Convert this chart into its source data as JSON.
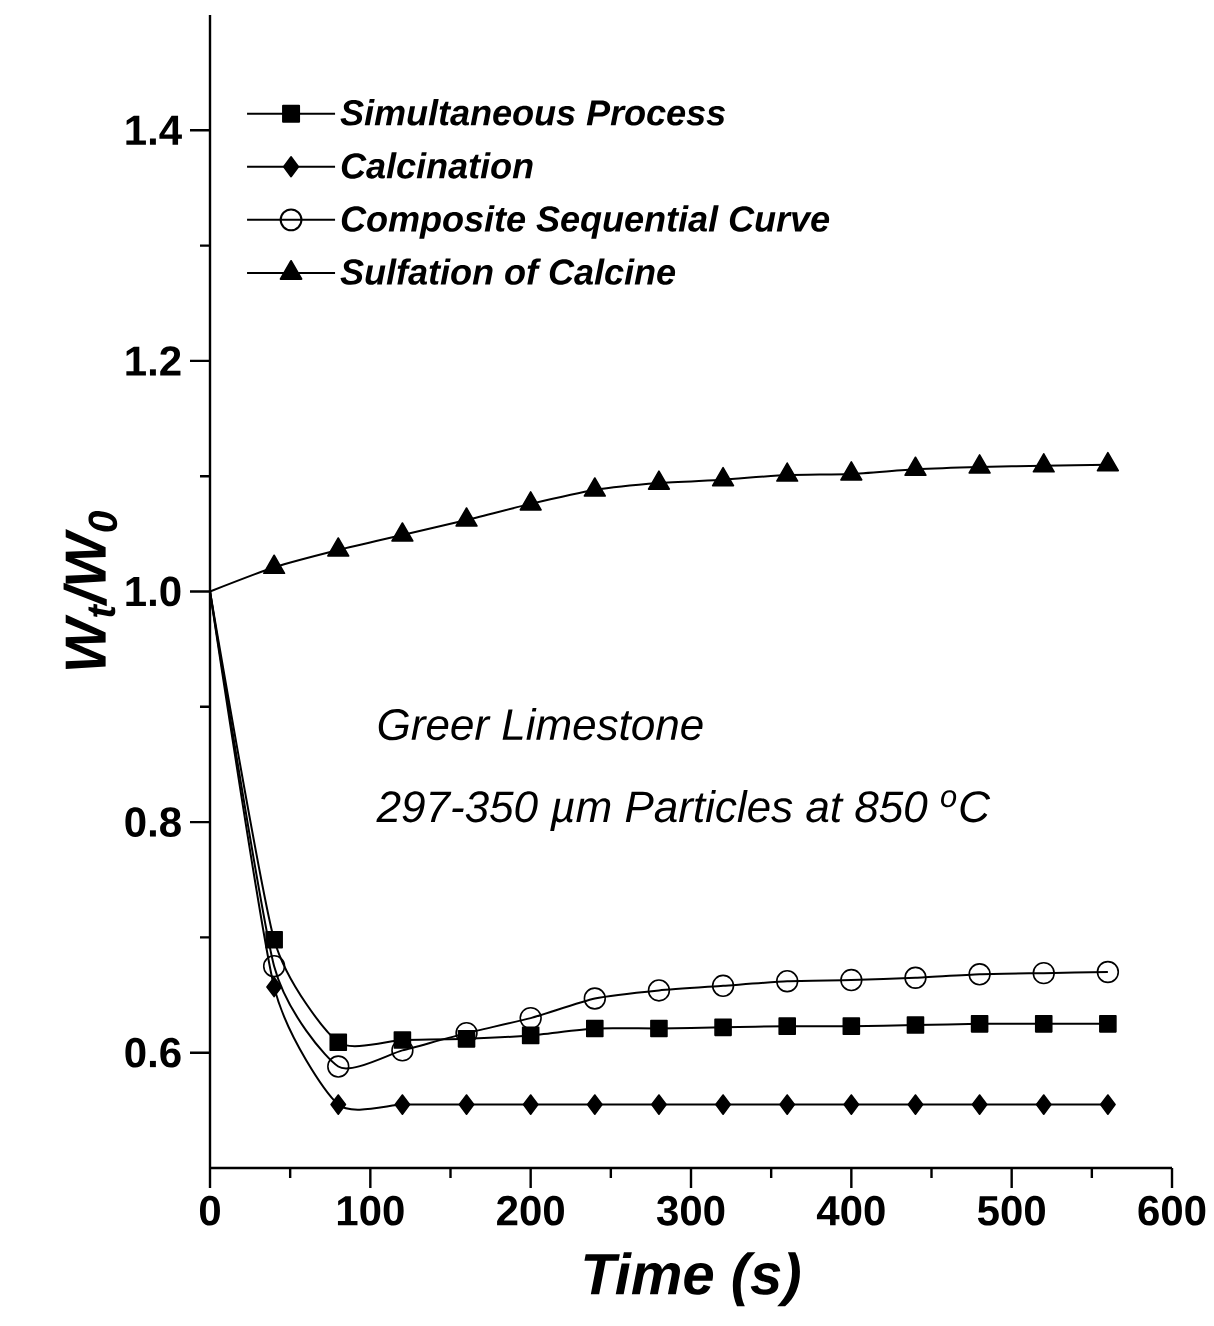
{
  "chart_data": {
    "type": "line",
    "xlabel": "Time (s)",
    "ylabel": "W$_{t}$/W$_{0}$",
    "x": [
      0,
      40,
      80,
      120,
      160,
      200,
      240,
      280,
      320,
      360,
      400,
      440,
      480,
      520,
      560
    ],
    "series": [
      {
        "name": "Simultaneous Process",
        "color": "#000000",
        "marker": "square",
        "values": [
          1.0,
          0.698,
          0.609,
          0.611,
          0.612,
          0.615,
          0.621,
          0.621,
          0.622,
          0.623,
          0.623,
          0.624,
          0.625,
          0.625,
          0.625
        ]
      },
      {
        "name": "Calcination",
        "color": "#000000",
        "marker": "diamond",
        "values": [
          1.0,
          0.657,
          0.555,
          0.555,
          0.555,
          0.555,
          0.555,
          0.555,
          0.555,
          0.555,
          0.555,
          0.555,
          0.555,
          0.555,
          0.555
        ]
      },
      {
        "name": "Composite Sequential Curve",
        "color": "#000000",
        "marker": "circle",
        "values": [
          1.0,
          0.675,
          0.588,
          0.602,
          0.617,
          0.63,
          0.647,
          0.654,
          0.658,
          0.662,
          0.663,
          0.665,
          0.668,
          0.669,
          0.67
        ]
      },
      {
        "name": "Sulfation of Calcine",
        "color": "#000000",
        "marker": "triangle",
        "values": [
          1.0,
          1.021,
          1.036,
          1.049,
          1.062,
          1.076,
          1.088,
          1.094,
          1.097,
          1.101,
          1.102,
          1.106,
          1.108,
          1.109,
          1.11
        ]
      }
    ],
    "xlim": [
      0,
      600
    ],
    "xticks": [
      0,
      100,
      200,
      300,
      400,
      500,
      600
    ],
    "ylim": [
      0.5,
      1.5
    ],
    "yticks": [
      0.6,
      0.8,
      {
        "value": 1.0,
        "label": "1.0"
      },
      1.2,
      1.4
    ],
    "annotations": [
      "Greer Limestone",
      "297-350 µm Particles at 850 $^{o}$C"
    ],
    "legend": "top left",
    "grid": false,
    "line_style": "solid"
  }
}
